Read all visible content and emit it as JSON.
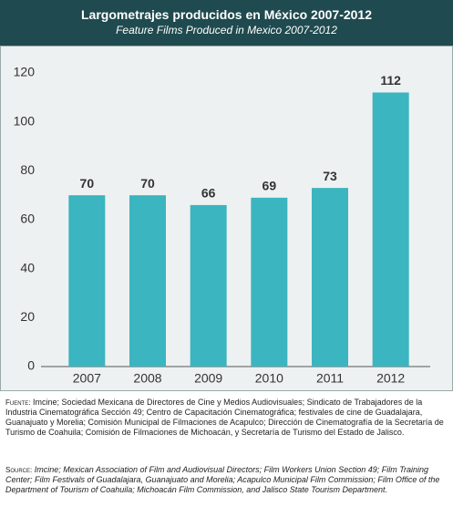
{
  "chart_data": {
    "type": "bar",
    "title": "Largometrajes producidos en México 2007-2012",
    "subtitle": "Feature Films Produced in Mexico 2007-2012",
    "categories": [
      "2007",
      "2008",
      "2009",
      "2010",
      "2011",
      "2012"
    ],
    "values": [
      70,
      70,
      66,
      69,
      73,
      112
    ],
    "color": "#3bb5bf",
    "ylim": [
      0,
      120
    ],
    "yticks": [
      0,
      20,
      40,
      60,
      80,
      100,
      120
    ],
    "grid": false
  },
  "source_es": {
    "label": "Fuente:",
    "text": "Imcine; Sociedad Mexicana de Directores de Cine y Medios Audiovisuales; Sindicato de Trabajadores de la Industria Cinematográfica Sección 49; Centro de Capacitación Cinematográfica; festivales de cine de Guadalajara, Guanajuato y Morelia; Comisión Municipal de Filmaciones de Acapulco; Dirección de Cinematografía de la Secretaría de Turismo de Coahuila; Comisión de Filmaciones de Michoacán, y Secretaría de Turismo del Estado de Jalisco."
  },
  "source_en": {
    "label": "Source:",
    "text": "Imcine; Mexican Association of Film and Audiovisual Directors; Film Workers Union Section 49; Film Training Center; Film Festivals of Guadalajara, Guanajuato and Morelia; Acapulco Municipal Film Commission; Film Office of the Department of Tourism of Coahuila; Michoacán Film Commission, and Jalisco State Tourism Department."
  }
}
